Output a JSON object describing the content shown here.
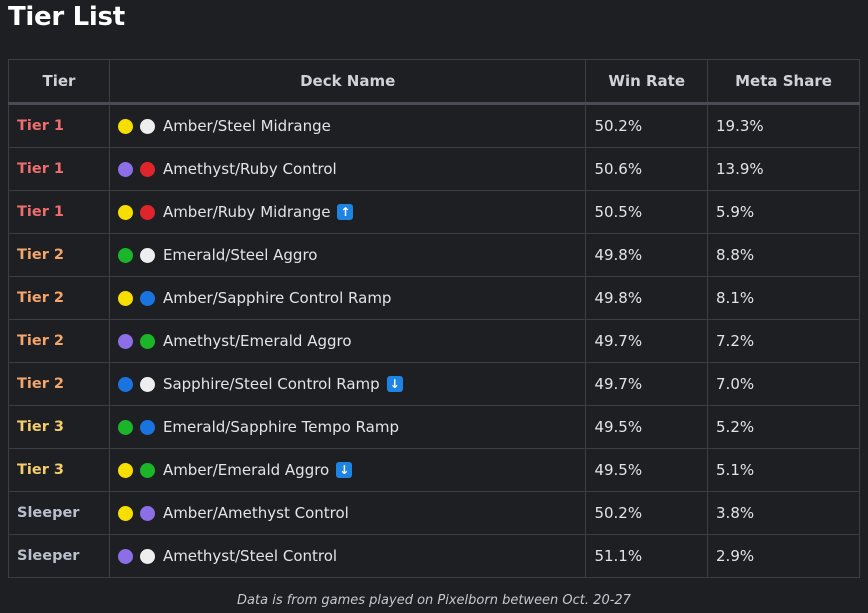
{
  "title": "Tier List",
  "headers": {
    "tier": "Tier",
    "deck": "Deck Name",
    "win": "Win Rate",
    "meta": "Meta Share"
  },
  "ink_colors": {
    "amber": "#f6df00",
    "steel": "#eeeeee",
    "amethyst": "#8c6ee6",
    "ruby": "#e0242c",
    "emerald": "#1bb52a",
    "sapphire": "#1a74e0"
  },
  "tier_colors": {
    "Tier 1": "#f06d6d",
    "Tier 2": "#f3a56a",
    "Tier 3": "#f5cd6a",
    "Sleeper": "#b9bfcd"
  },
  "rows": [
    {
      "tier": "Tier 1",
      "inks": [
        "amber",
        "steel"
      ],
      "deck": "Amber/Steel Midrange",
      "trend": "",
      "win": "50.2%",
      "meta": "19.3%"
    },
    {
      "tier": "Tier 1",
      "inks": [
        "amethyst",
        "ruby"
      ],
      "deck": "Amethyst/Ruby Control",
      "trend": "",
      "win": "50.6%",
      "meta": "13.9%"
    },
    {
      "tier": "Tier 1",
      "inks": [
        "amber",
        "ruby"
      ],
      "deck": "Amber/Ruby Midrange",
      "trend": "up",
      "win": "50.5%",
      "meta": "5.9%"
    },
    {
      "tier": "Tier 2",
      "inks": [
        "emerald",
        "steel"
      ],
      "deck": "Emerald/Steel Aggro",
      "trend": "",
      "win": "49.8%",
      "meta": "8.8%"
    },
    {
      "tier": "Tier 2",
      "inks": [
        "amber",
        "sapphire"
      ],
      "deck": "Amber/Sapphire Control Ramp",
      "trend": "",
      "win": "49.8%",
      "meta": "8.1%"
    },
    {
      "tier": "Tier 2",
      "inks": [
        "amethyst",
        "emerald"
      ],
      "deck": "Amethyst/Emerald Aggro",
      "trend": "",
      "win": "49.7%",
      "meta": "7.2%"
    },
    {
      "tier": "Tier 2",
      "inks": [
        "sapphire",
        "steel"
      ],
      "deck": "Sapphire/Steel Control Ramp",
      "trend": "down",
      "win": "49.7%",
      "meta": "7.0%"
    },
    {
      "tier": "Tier 3",
      "inks": [
        "emerald",
        "sapphire"
      ],
      "deck": "Emerald/Sapphire Tempo Ramp",
      "trend": "",
      "win": "49.5%",
      "meta": "5.2%"
    },
    {
      "tier": "Tier 3",
      "inks": [
        "amber",
        "emerald"
      ],
      "deck": "Amber/Emerald Aggro",
      "trend": "down",
      "win": "49.5%",
      "meta": "5.1%"
    },
    {
      "tier": "Sleeper",
      "inks": [
        "amber",
        "amethyst"
      ],
      "deck": "Amber/Amethyst Control",
      "trend": "",
      "win": "50.2%",
      "meta": "3.8%"
    },
    {
      "tier": "Sleeper",
      "inks": [
        "amethyst",
        "steel"
      ],
      "deck": "Amethyst/Steel Control",
      "trend": "",
      "win": "51.1%",
      "meta": "2.9%"
    }
  ],
  "footer": "Data is from games played on Pixelborn between Oct. 20-27"
}
